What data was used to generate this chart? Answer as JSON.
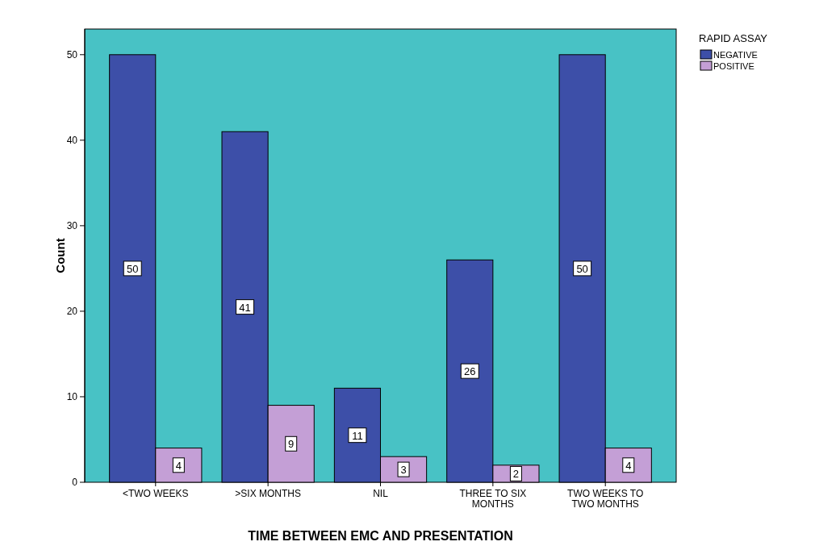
{
  "chart_data": {
    "type": "bar",
    "xlabel": "TIME BETWEEN EMC AND PRESENTATION",
    "ylabel": "Count",
    "legend_title": "RAPID ASSAY",
    "categories": [
      "<TWO WEEKS",
      ">SIX MONTHS",
      "NIL",
      "THREE TO SIX MONTHS",
      "TWO WEEKS TO TWO MONTHS"
    ],
    "series": [
      {
        "name": "NEGATIVE",
        "color": "#3d4fa8",
        "values": [
          50,
          41,
          11,
          26,
          50
        ]
      },
      {
        "name": "POSITIVE",
        "color": "#c49fd6",
        "values": [
          4,
          9,
          3,
          2,
          4
        ]
      }
    ],
    "ylim": [
      0,
      53
    ],
    "yticks": [
      0,
      10,
      20,
      30,
      40,
      50
    ],
    "data_labels": true,
    "legend": "top right",
    "grid": false
  }
}
